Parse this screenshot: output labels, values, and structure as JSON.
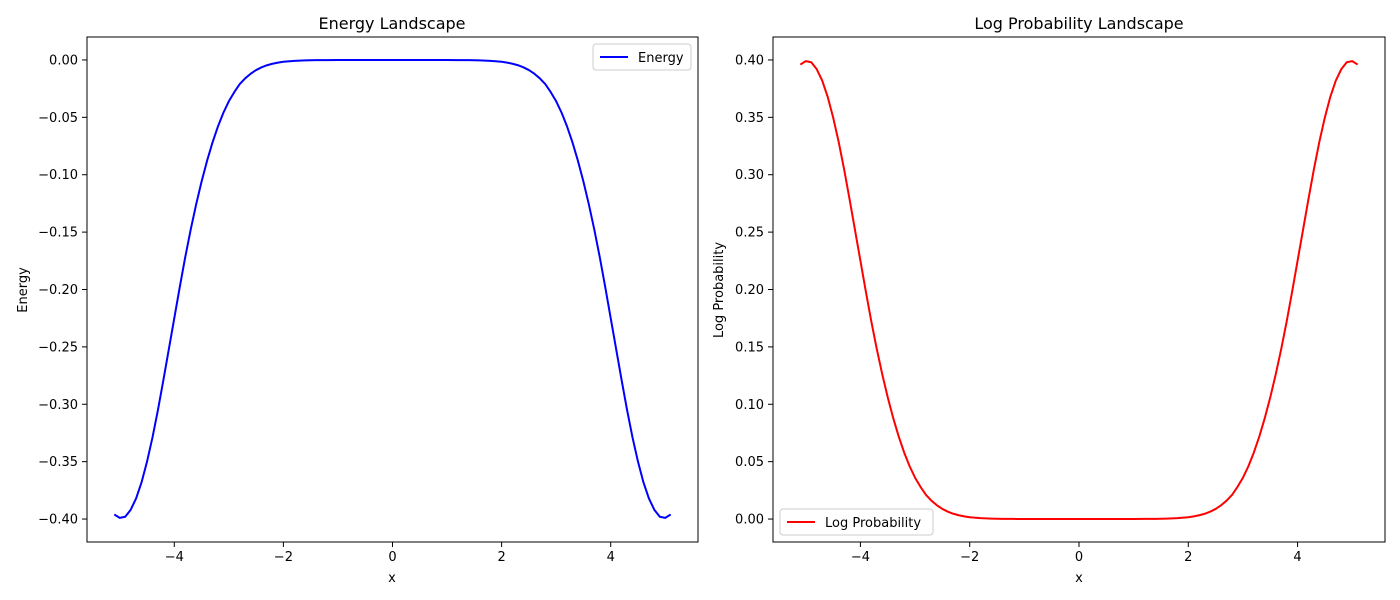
{
  "chart_data": [
    {
      "type": "line",
      "title": "Energy Landscape",
      "xlabel": "x",
      "ylabel": "Energy",
      "xlim": [
        -5.6,
        5.6
      ],
      "ylim": [
        -0.42,
        0.02
      ],
      "xticks": [
        -4,
        -2,
        0,
        2,
        4
      ],
      "xtick_labels": [
        "−4",
        "−2",
        "0",
        "2",
        "4"
      ],
      "yticks": [
        0.0,
        -0.05,
        -0.1,
        -0.15,
        -0.2,
        -0.25,
        -0.3,
        -0.35,
        -0.4
      ],
      "ytick_labels": [
        "0.00",
        "−0.05",
        "−0.10",
        "−0.15",
        "−0.20",
        "−0.25",
        "−0.30",
        "−0.35",
        "−0.40"
      ],
      "grid": false,
      "legend_position": "upper-right",
      "series": [
        {
          "name": "Energy",
          "color": "#0000ff",
          "x": [
            -5.1,
            -5.0,
            -4.9,
            -4.8,
            -4.7,
            -4.6,
            -4.5,
            -4.4,
            -4.3,
            -4.2,
            -4.1,
            -4.0,
            -3.9,
            -3.8,
            -3.7,
            -3.6,
            -3.5,
            -3.4,
            -3.3,
            -3.2,
            -3.1,
            -3.0,
            -2.9,
            -2.8,
            -2.7,
            -2.6,
            -2.5,
            -2.4,
            -2.3,
            -2.2,
            -2.1,
            -2.0,
            -1.8,
            -1.6,
            -1.4,
            -1.2,
            -1.0,
            -0.8,
            -0.6,
            -0.4,
            -0.2,
            0.0,
            0.2,
            0.4,
            0.6,
            0.8,
            1.0,
            1.2,
            1.4,
            1.6,
            1.8,
            2.0,
            2.1,
            2.2,
            2.3,
            2.4,
            2.5,
            2.6,
            2.7,
            2.8,
            2.9,
            3.0,
            3.1,
            3.2,
            3.3,
            3.4,
            3.5,
            3.6,
            3.7,
            3.8,
            3.9,
            4.0,
            4.1,
            4.2,
            4.3,
            4.4,
            4.5,
            4.6,
            4.7,
            4.8,
            4.9,
            5.0,
            5.1
          ],
          "y": [
            -0.396,
            -0.399,
            -0.398,
            -0.392,
            -0.382,
            -0.368,
            -0.35,
            -0.329,
            -0.305,
            -0.279,
            -0.252,
            -0.225,
            -0.198,
            -0.172,
            -0.148,
            -0.126,
            -0.106,
            -0.088,
            -0.072,
            -0.058,
            -0.046,
            -0.036,
            -0.028,
            -0.021,
            -0.016,
            -0.012,
            -0.0088,
            -0.0064,
            -0.0046,
            -0.0033,
            -0.0023,
            -0.0016,
            -0.0008,
            -0.0004,
            -0.0002,
            -0.0001,
            0.0,
            0.0,
            0.0,
            0.0,
            0.0,
            0.0,
            0.0,
            0.0,
            0.0,
            0.0,
            0.0,
            -0.0001,
            -0.0002,
            -0.0004,
            -0.0008,
            -0.0016,
            -0.0023,
            -0.0033,
            -0.0046,
            -0.0064,
            -0.0088,
            -0.012,
            -0.016,
            -0.021,
            -0.028,
            -0.036,
            -0.046,
            -0.058,
            -0.072,
            -0.088,
            -0.106,
            -0.126,
            -0.148,
            -0.172,
            -0.198,
            -0.225,
            -0.252,
            -0.279,
            -0.305,
            -0.329,
            -0.35,
            -0.368,
            -0.382,
            -0.392,
            -0.398,
            -0.399,
            -0.396
          ]
        }
      ]
    },
    {
      "type": "line",
      "title": "Log Probability Landscape",
      "xlabel": "x",
      "ylabel": "Log Probability",
      "xlim": [
        -5.6,
        5.6
      ],
      "ylim": [
        -0.02,
        0.42
      ],
      "xticks": [
        -4,
        -2,
        0,
        2,
        4
      ],
      "xtick_labels": [
        "−4",
        "−2",
        "0",
        "2",
        "4"
      ],
      "yticks": [
        0.0,
        0.05,
        0.1,
        0.15,
        0.2,
        0.25,
        0.3,
        0.35,
        0.4
      ],
      "ytick_labels": [
        "0.00",
        "0.05",
        "0.10",
        "0.15",
        "0.20",
        "0.25",
        "0.30",
        "0.35",
        "0.40"
      ],
      "grid": false,
      "legend_position": "lower-left",
      "series": [
        {
          "name": "Log Probability",
          "color": "#ff0000",
          "x": [
            -5.1,
            -5.0,
            -4.9,
            -4.8,
            -4.7,
            -4.6,
            -4.5,
            -4.4,
            -4.3,
            -4.2,
            -4.1,
            -4.0,
            -3.9,
            -3.8,
            -3.7,
            -3.6,
            -3.5,
            -3.4,
            -3.3,
            -3.2,
            -3.1,
            -3.0,
            -2.9,
            -2.8,
            -2.7,
            -2.6,
            -2.5,
            -2.4,
            -2.3,
            -2.2,
            -2.1,
            -2.0,
            -1.8,
            -1.6,
            -1.4,
            -1.2,
            -1.0,
            -0.8,
            -0.6,
            -0.4,
            -0.2,
            0.0,
            0.2,
            0.4,
            0.6,
            0.8,
            1.0,
            1.2,
            1.4,
            1.6,
            1.8,
            2.0,
            2.1,
            2.2,
            2.3,
            2.4,
            2.5,
            2.6,
            2.7,
            2.8,
            2.9,
            3.0,
            3.1,
            3.2,
            3.3,
            3.4,
            3.5,
            3.6,
            3.7,
            3.8,
            3.9,
            4.0,
            4.1,
            4.2,
            4.3,
            4.4,
            4.5,
            4.6,
            4.7,
            4.8,
            4.9,
            5.0,
            5.1
          ],
          "y": [
            0.396,
            0.399,
            0.398,
            0.392,
            0.382,
            0.368,
            0.35,
            0.329,
            0.305,
            0.279,
            0.252,
            0.225,
            0.198,
            0.172,
            0.148,
            0.126,
            0.106,
            0.088,
            0.072,
            0.058,
            0.046,
            0.036,
            0.028,
            0.021,
            0.016,
            0.012,
            0.0088,
            0.0064,
            0.0046,
            0.0033,
            0.0023,
            0.0016,
            0.0008,
            0.0004,
            0.0002,
            0.0001,
            0.0,
            0.0,
            0.0,
            0.0,
            0.0,
            0.0,
            0.0,
            0.0,
            0.0,
            0.0,
            0.0,
            0.0001,
            0.0002,
            0.0004,
            0.0008,
            0.0016,
            0.0023,
            0.0033,
            0.0046,
            0.0064,
            0.0088,
            0.012,
            0.016,
            0.021,
            0.028,
            0.036,
            0.046,
            0.058,
            0.072,
            0.088,
            0.106,
            0.126,
            0.148,
            0.172,
            0.198,
            0.225,
            0.252,
            0.279,
            0.305,
            0.329,
            0.35,
            0.368,
            0.382,
            0.392,
            0.398,
            0.399,
            0.396
          ]
        }
      ]
    }
  ]
}
